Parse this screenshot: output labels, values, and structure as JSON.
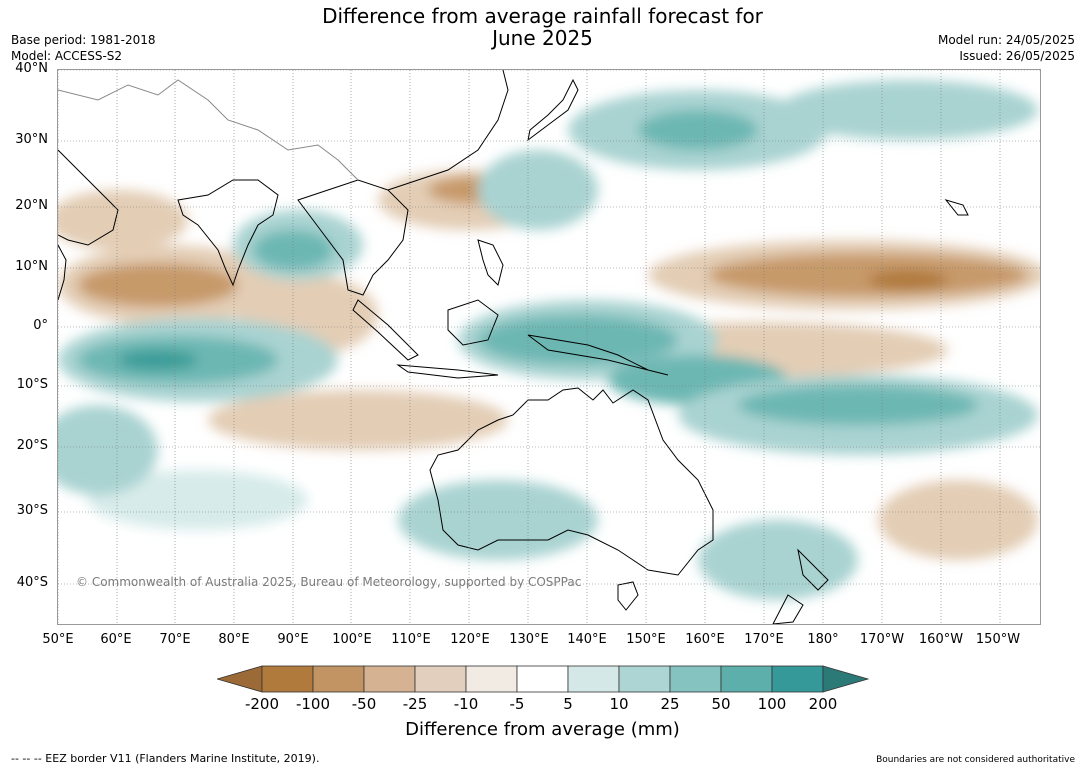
{
  "title": {
    "line1": "Difference from average rainfall forecast for",
    "line2": "June 2025"
  },
  "meta_left": {
    "base_period": "Base period: 1981-2018",
    "model": "Model: ACCESS-S2"
  },
  "meta_right": {
    "model_run": "Model run: 24/05/2025",
    "issued": "Issued: 26/05/2025"
  },
  "map": {
    "lat_labels": [
      "40°N",
      "30°N",
      "20°N",
      "10°N",
      "0°",
      "10°S",
      "20°S",
      "30°S",
      "40°S"
    ],
    "lon_labels": [
      "50°E",
      "60°E",
      "70°E",
      "80°E",
      "90°E",
      "100°E",
      "110°E",
      "120°E",
      "130°E",
      "140°E",
      "150°E",
      "160°E",
      "170°E",
      "180°",
      "170°W",
      "160°W",
      "150°W"
    ],
    "copyright": "© Commonwealth of Australia 2025, Bureau of Meteorology, supported by COSPPac",
    "colors": {
      "dry_strong": "#b07a3c",
      "dry_mod": "#c79a6b",
      "dry_light": "#e3cdb5",
      "dry_faint": "#f1ebe3",
      "wet_faint": "#d7ebea",
      "wet_light": "#a9d3d1",
      "wet_mod": "#6db7b3",
      "wet_strong": "#3a9c98",
      "land_outline": "#000000",
      "border": "#888888"
    }
  },
  "colorbar": {
    "labels": [
      "-200",
      "-100",
      "-50",
      "-25",
      "-10",
      "-5",
      "5",
      "10",
      "25",
      "50",
      "100",
      "200"
    ],
    "colors": [
      "#9b6a36",
      "#b07a3c",
      "#c29363",
      "#d4b292",
      "#e3cfbd",
      "#f1ebe4",
      "#ffffff",
      "#d4e8e7",
      "#acd5d3",
      "#85c3c0",
      "#5cafab",
      "#35999a",
      "#2b7a78"
    ],
    "title": "Difference from average (mm)"
  },
  "footer": {
    "left": "--  --  -- EEZ border V11 (Flanders Marine Institute, 2019).",
    "right": "Boundaries are not considered authoritative"
  }
}
